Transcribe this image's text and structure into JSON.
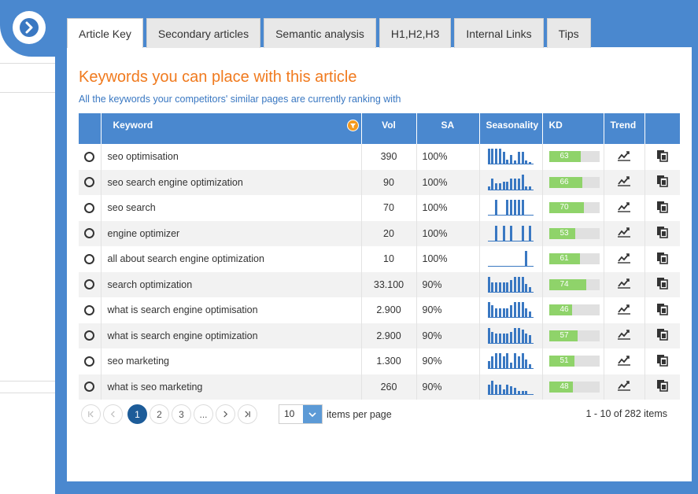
{
  "tabs": [
    {
      "label": "Article Key",
      "active": true
    },
    {
      "label": "Secondary articles",
      "active": false
    },
    {
      "label": "Semantic analysis",
      "active": false
    },
    {
      "label": "H1,H2,H3",
      "active": false
    },
    {
      "label": "Internal Links",
      "active": false
    },
    {
      "label": "Tips",
      "active": false
    }
  ],
  "heading": "Keywords you can place with this article",
  "subheading": "All the keywords your competitors' similar pages are currently ranking with",
  "table": {
    "columns": [
      "",
      "Keyword",
      "Vol",
      "SA",
      "Seasonality",
      "KD",
      "Trend",
      ""
    ],
    "rows": [
      {
        "keyword": "seo optimisation",
        "vol": "390",
        "sa": "100%",
        "kd": "63",
        "season": [
          1,
          1,
          1,
          1,
          0.8,
          0.3,
          0.6,
          0.2,
          0.8,
          0.8,
          0.2,
          0.1
        ]
      },
      {
        "keyword": "seo search engine optimization",
        "vol": "90",
        "sa": "100%",
        "kd": "66",
        "season": [
          0.2,
          0.7,
          0.4,
          0.4,
          0.5,
          0.5,
          0.7,
          0.7,
          0.7,
          1,
          0.2,
          0.2
        ]
      },
      {
        "keyword": "seo search",
        "vol": "70",
        "sa": "100%",
        "kd": "70",
        "season": [
          0,
          0,
          1,
          0,
          0,
          1,
          1,
          1,
          1,
          1,
          0,
          0
        ]
      },
      {
        "keyword": "engine optimizer",
        "vol": "20",
        "sa": "100%",
        "kd": "53",
        "season": [
          0,
          0,
          1,
          0,
          1,
          0,
          1,
          0,
          0,
          1,
          0,
          1
        ]
      },
      {
        "keyword": "all about search engine optimization",
        "vol": "10",
        "sa": "100%",
        "kd": "61",
        "season": [
          0,
          0,
          0,
          0,
          0,
          0,
          0,
          0,
          0,
          0,
          1,
          0
        ]
      },
      {
        "keyword": "search optimization",
        "vol": "33.100",
        "sa": "90%",
        "kd": "74",
        "season": [
          1,
          0.6,
          0.6,
          0.6,
          0.6,
          0.6,
          0.8,
          1,
          1,
          1,
          0.5,
          0.3
        ]
      },
      {
        "keyword": "what is search engine optimisation",
        "vol": "2.900",
        "sa": "90%",
        "kd": "46",
        "season": [
          1,
          0.8,
          0.6,
          0.6,
          0.6,
          0.6,
          0.8,
          1,
          1,
          1,
          0.6,
          0.4
        ]
      },
      {
        "keyword": "what is search engine optimization",
        "vol": "2.900",
        "sa": "90%",
        "kd": "57",
        "season": [
          1,
          0.7,
          0.6,
          0.6,
          0.6,
          0.6,
          0.7,
          1,
          1,
          0.9,
          0.6,
          0.5
        ]
      },
      {
        "keyword": "seo marketing",
        "vol": "1.300",
        "sa": "90%",
        "kd": "51",
        "season": [
          0.5,
          0.8,
          1,
          1,
          0.8,
          1,
          0.4,
          1,
          0.8,
          1,
          0.6,
          0.3
        ]
      },
      {
        "keyword": "what is seo marketing",
        "vol": "260",
        "sa": "90%",
        "kd": "48",
        "season": [
          0.6,
          0.9,
          0.6,
          0.6,
          0.3,
          0.6,
          0.5,
          0.4,
          0.2,
          0.2,
          0.2,
          0
        ]
      }
    ]
  },
  "pager": {
    "pages": [
      "1",
      "2",
      "3",
      "..."
    ],
    "current": "1",
    "per_page_value": "10",
    "per_page_label": "items per page",
    "count_text": "1 - 10 of 282 items"
  },
  "colors": {
    "accent": "#4a88cf",
    "heading": "#f07a1e",
    "kd_fill": "#8fd36a",
    "bars": "#3a78c2"
  }
}
